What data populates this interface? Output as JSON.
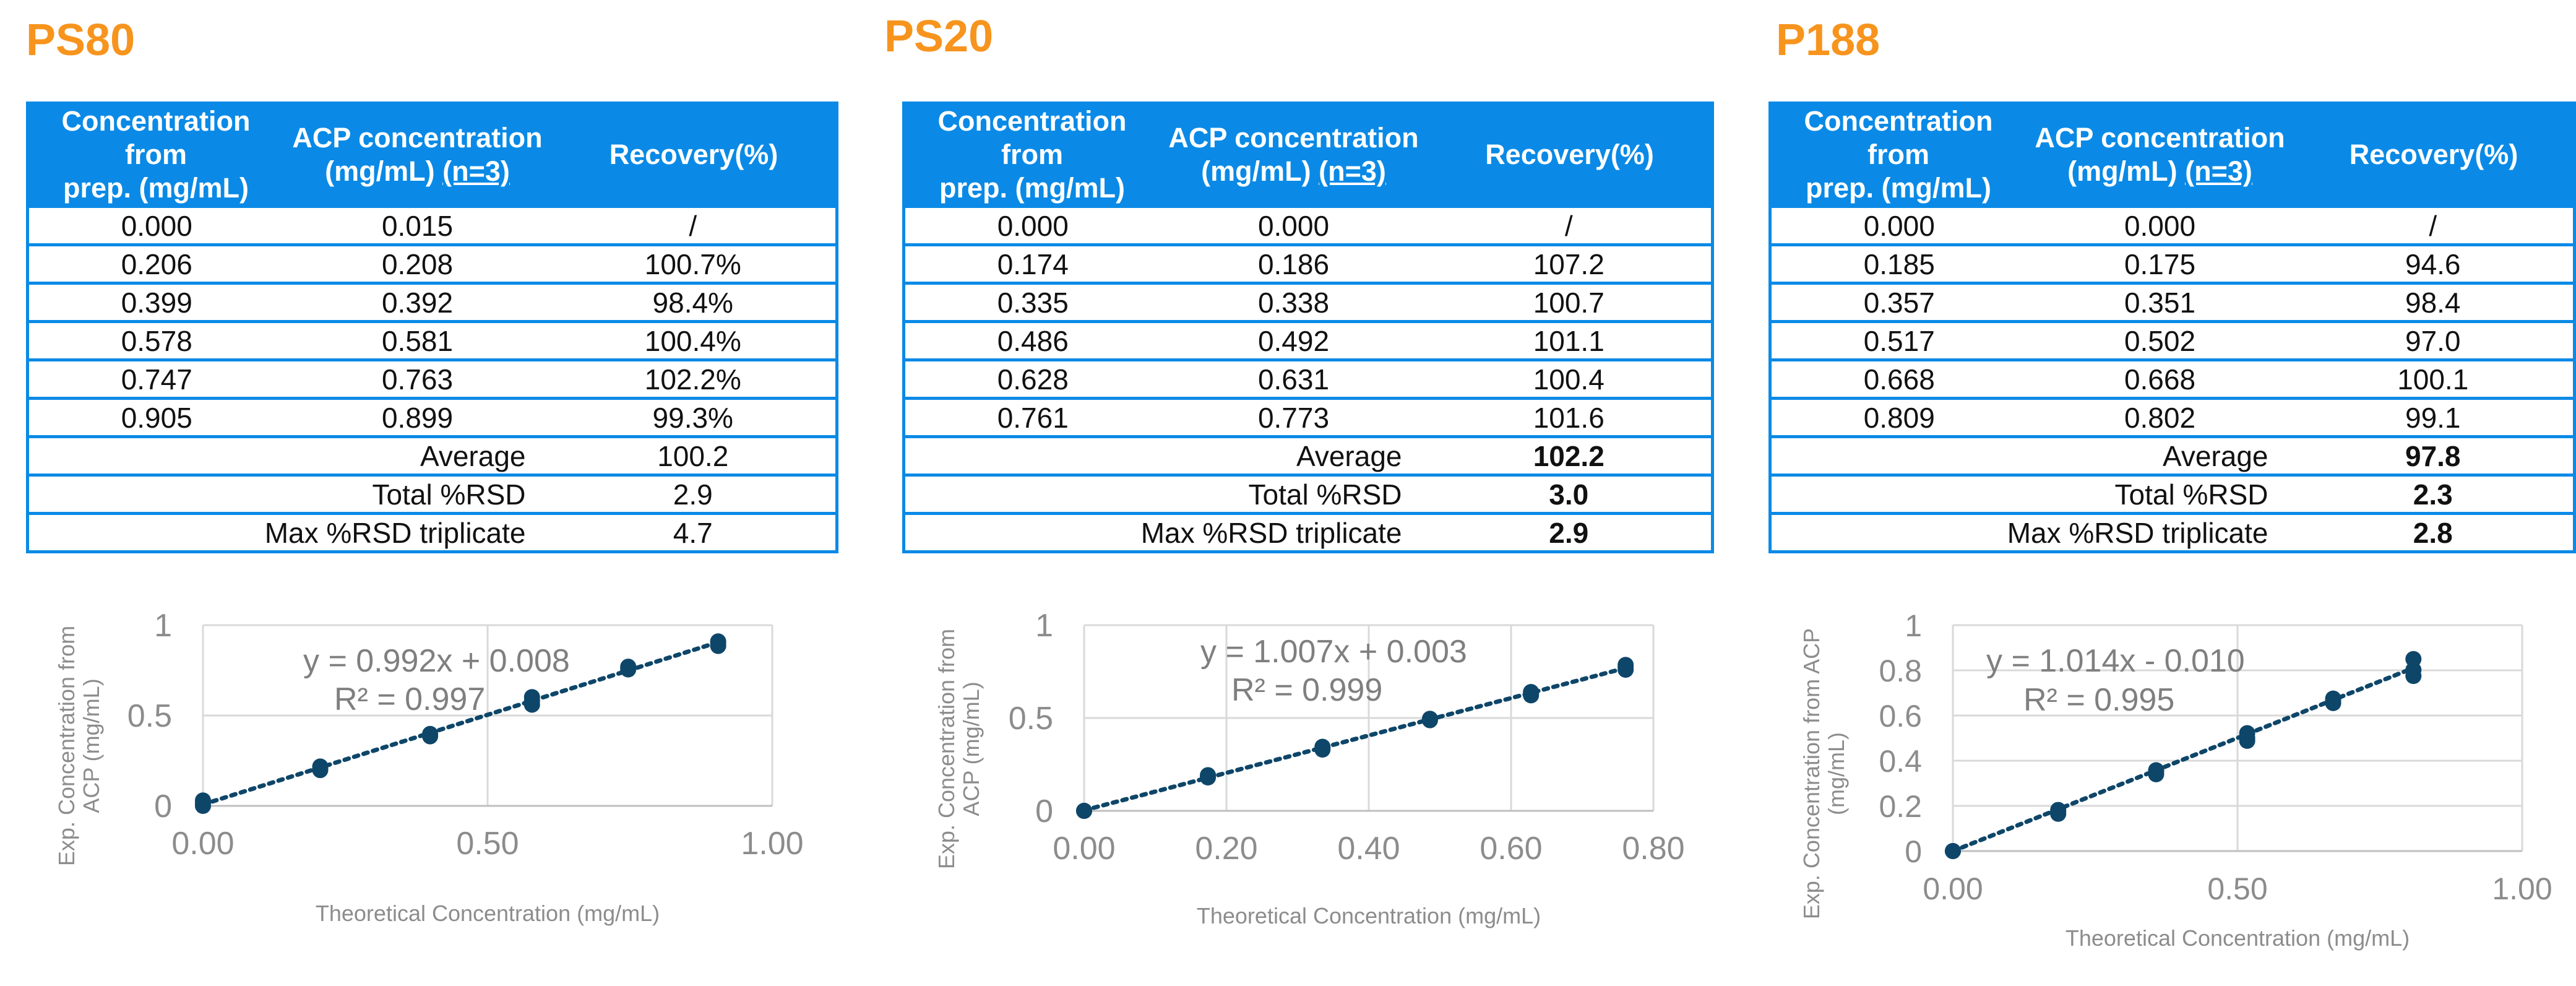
{
  "panels": [
    {
      "title": "PS80",
      "headers": {
        "col1_line1": "Concentration from",
        "col1_line2": "prep. (mg/mL)",
        "col2_line1": "ACP concentration",
        "col2_line2": "(mg/mL)",
        "col2_n": "(n=3)",
        "col3": "Recovery(%)"
      },
      "rows": [
        {
          "prep": "0.000",
          "acp": "0.015",
          "recovery": "/"
        },
        {
          "prep": "0.206",
          "acp": "0.208",
          "recovery": "100.7%"
        },
        {
          "prep": "0.399",
          "acp": "0.392",
          "recovery": "98.4%"
        },
        {
          "prep": "0.578",
          "acp": "0.581",
          "recovery": "100.4%"
        },
        {
          "prep": "0.747",
          "acp": "0.763",
          "recovery": "102.2%"
        },
        {
          "prep": "0.905",
          "acp": "0.899",
          "recovery": "99.3%"
        }
      ],
      "summary": [
        {
          "label": "Average",
          "value": "100.2",
          "bold": false
        },
        {
          "label": "Total %RSD",
          "value": "2.9",
          "bold": false
        },
        {
          "label": "Max %RSD triplicate",
          "value": "4.7",
          "bold": false
        }
      ]
    },
    {
      "title": "PS20",
      "headers": {
        "col1_line1": "Concentration from",
        "col1_line2": "prep. (mg/mL)",
        "col2_line1": "ACP concentration",
        "col2_line2": "(mg/mL)",
        "col2_n": "(n=3)",
        "col3": "Recovery(%)"
      },
      "rows": [
        {
          "prep": "0.000",
          "acp": "0.000",
          "recovery": "/"
        },
        {
          "prep": "0.174",
          "acp": "0.186",
          "recovery": "107.2"
        },
        {
          "prep": "0.335",
          "acp": "0.338",
          "recovery": "100.7"
        },
        {
          "prep": "0.486",
          "acp": "0.492",
          "recovery": "101.1"
        },
        {
          "prep": "0.628",
          "acp": "0.631",
          "recovery": "100.4"
        },
        {
          "prep": "0.761",
          "acp": "0.773",
          "recovery": "101.6"
        }
      ],
      "summary": [
        {
          "label": "Average",
          "value": "102.2",
          "bold": true
        },
        {
          "label": "Total %RSD",
          "value": "3.0",
          "bold": true
        },
        {
          "label": "Max %RSD triplicate",
          "value": "2.9",
          "bold": true
        }
      ]
    },
    {
      "title": "P188",
      "headers": {
        "col1_line1": "Concentration from",
        "col1_line2": "prep. (mg/mL)",
        "col2_line1": "ACP concentration",
        "col2_line2": "(mg/mL)",
        "col2_n": "(n=3)",
        "col3": "Recovery(%)"
      },
      "rows": [
        {
          "prep": "0.000",
          "acp": "0.000",
          "recovery": "/"
        },
        {
          "prep": "0.185",
          "acp": "0.175",
          "recovery": "94.6"
        },
        {
          "prep": "0.357",
          "acp": "0.351",
          "recovery": "98.4"
        },
        {
          "prep": "0.517",
          "acp": "0.502",
          "recovery": "97.0"
        },
        {
          "prep": "0.668",
          "acp": "0.668",
          "recovery": "100.1"
        },
        {
          "prep": "0.809",
          "acp": "0.802",
          "recovery": "99.1"
        }
      ],
      "summary": [
        {
          "label": "Average",
          "value": "97.8",
          "bold": true
        },
        {
          "label": "Total %RSD",
          "value": "2.3",
          "bold": true
        },
        {
          "label": "Max %RSD triplicate",
          "value": "2.8",
          "bold": true
        }
      ]
    }
  ],
  "chart_data": [
    {
      "type": "scatter",
      "panel": "PS80",
      "xlabel": "Theoretical Concentration (mg/mL)",
      "ylabel_lines": [
        "Exp.  Concentration from",
        "ACP (mg/mL)"
      ],
      "equation": "y = 0.992x + 0.008",
      "r2": "R² = 0.997",
      "xlim": [
        0,
        1.0
      ],
      "ylim": [
        0,
        1.0
      ],
      "xticks": [
        0,
        0.5,
        1.0
      ],
      "xtick_labels": [
        "0.00",
        "0.50",
        "1.00"
      ],
      "yticks": [
        0,
        0.5,
        1.0
      ],
      "ytick_labels": [
        "0",
        "0.5",
        "1"
      ],
      "trendline": {
        "slope": 0.992,
        "intercept": 0.008,
        "x_range": [
          0,
          0.905
        ]
      },
      "grid": true,
      "marker_color": "#0e4669",
      "points": [
        [
          0.0,
          0.0
        ],
        [
          0.0,
          0.015
        ],
        [
          0.0,
          0.03
        ],
        [
          0.206,
          0.198
        ],
        [
          0.206,
          0.208
        ],
        [
          0.206,
          0.218
        ],
        [
          0.399,
          0.385
        ],
        [
          0.399,
          0.392
        ],
        [
          0.399,
          0.398
        ],
        [
          0.578,
          0.56
        ],
        [
          0.578,
          0.581
        ],
        [
          0.578,
          0.602
        ],
        [
          0.747,
          0.755
        ],
        [
          0.747,
          0.763
        ],
        [
          0.747,
          0.77
        ],
        [
          0.905,
          0.885
        ],
        [
          0.905,
          0.899
        ],
        [
          0.905,
          0.91
        ]
      ]
    },
    {
      "type": "scatter",
      "panel": "PS20",
      "xlabel": "Theoretical Concentration (mg/mL)",
      "ylabel_lines": [
        "Exp.  Concentration from",
        "ACP (mg/mL)"
      ],
      "equation": "y = 1.007x + 0.003",
      "r2": "R² = 0.999",
      "xlim": [
        0,
        0.8
      ],
      "ylim": [
        0,
        1.0
      ],
      "xticks": [
        0,
        0.2,
        0.4,
        0.6,
        0.8
      ],
      "xtick_labels": [
        "0.00",
        "0.20",
        "0.40",
        "0.60",
        "0.80"
      ],
      "yticks": [
        0,
        0.5,
        1.0
      ],
      "ytick_labels": [
        "0",
        "0.5",
        "1"
      ],
      "trendline": {
        "slope": 1.007,
        "intercept": 0.003,
        "x_range": [
          0,
          0.761
        ]
      },
      "grid": true,
      "marker_color": "#0e4669",
      "points": [
        [
          0.0,
          0.0
        ],
        [
          0.0,
          0.0
        ],
        [
          0.0,
          0.0
        ],
        [
          0.174,
          0.18
        ],
        [
          0.174,
          0.186
        ],
        [
          0.174,
          0.192
        ],
        [
          0.335,
          0.33
        ],
        [
          0.335,
          0.338
        ],
        [
          0.335,
          0.345
        ],
        [
          0.486,
          0.488
        ],
        [
          0.486,
          0.492
        ],
        [
          0.486,
          0.496
        ],
        [
          0.628,
          0.622
        ],
        [
          0.628,
          0.631
        ],
        [
          0.628,
          0.64
        ],
        [
          0.761,
          0.76
        ],
        [
          0.761,
          0.773
        ],
        [
          0.761,
          0.786
        ]
      ]
    },
    {
      "type": "scatter",
      "panel": "P188",
      "xlabel": "Theoretical Concentration (mg/mL)",
      "ylabel_lines": [
        "Exp.  Concentration from ACP",
        "(mg/mL)"
      ],
      "equation": "y = 1.014x - 0.010",
      "r2": "R² = 0.995",
      "xlim": [
        0,
        1.0
      ],
      "ylim": [
        0,
        1.0
      ],
      "xticks": [
        0,
        0.5,
        1.0
      ],
      "xtick_labels": [
        "0.00",
        "0.50",
        "1.00"
      ],
      "yticks": [
        0,
        0.2,
        0.4,
        0.6,
        0.8,
        1.0
      ],
      "ytick_labels": [
        "0",
        "0.2",
        "0.4",
        "0.6",
        "0.8",
        "1"
      ],
      "trendline": {
        "slope": 1.014,
        "intercept": -0.01,
        "x_range": [
          0,
          0.809
        ]
      },
      "grid": true,
      "marker_color": "#0e4669",
      "points": [
        [
          0.0,
          0.0
        ],
        [
          0.0,
          0.0
        ],
        [
          0.0,
          0.0
        ],
        [
          0.185,
          0.165
        ],
        [
          0.185,
          0.175
        ],
        [
          0.185,
          0.182
        ],
        [
          0.357,
          0.34
        ],
        [
          0.357,
          0.351
        ],
        [
          0.357,
          0.358
        ],
        [
          0.517,
          0.488
        ],
        [
          0.517,
          0.502
        ],
        [
          0.517,
          0.522
        ],
        [
          0.668,
          0.655
        ],
        [
          0.668,
          0.668
        ],
        [
          0.668,
          0.675
        ],
        [
          0.809,
          0.775
        ],
        [
          0.809,
          0.802
        ],
        [
          0.809,
          0.85
        ]
      ]
    }
  ]
}
